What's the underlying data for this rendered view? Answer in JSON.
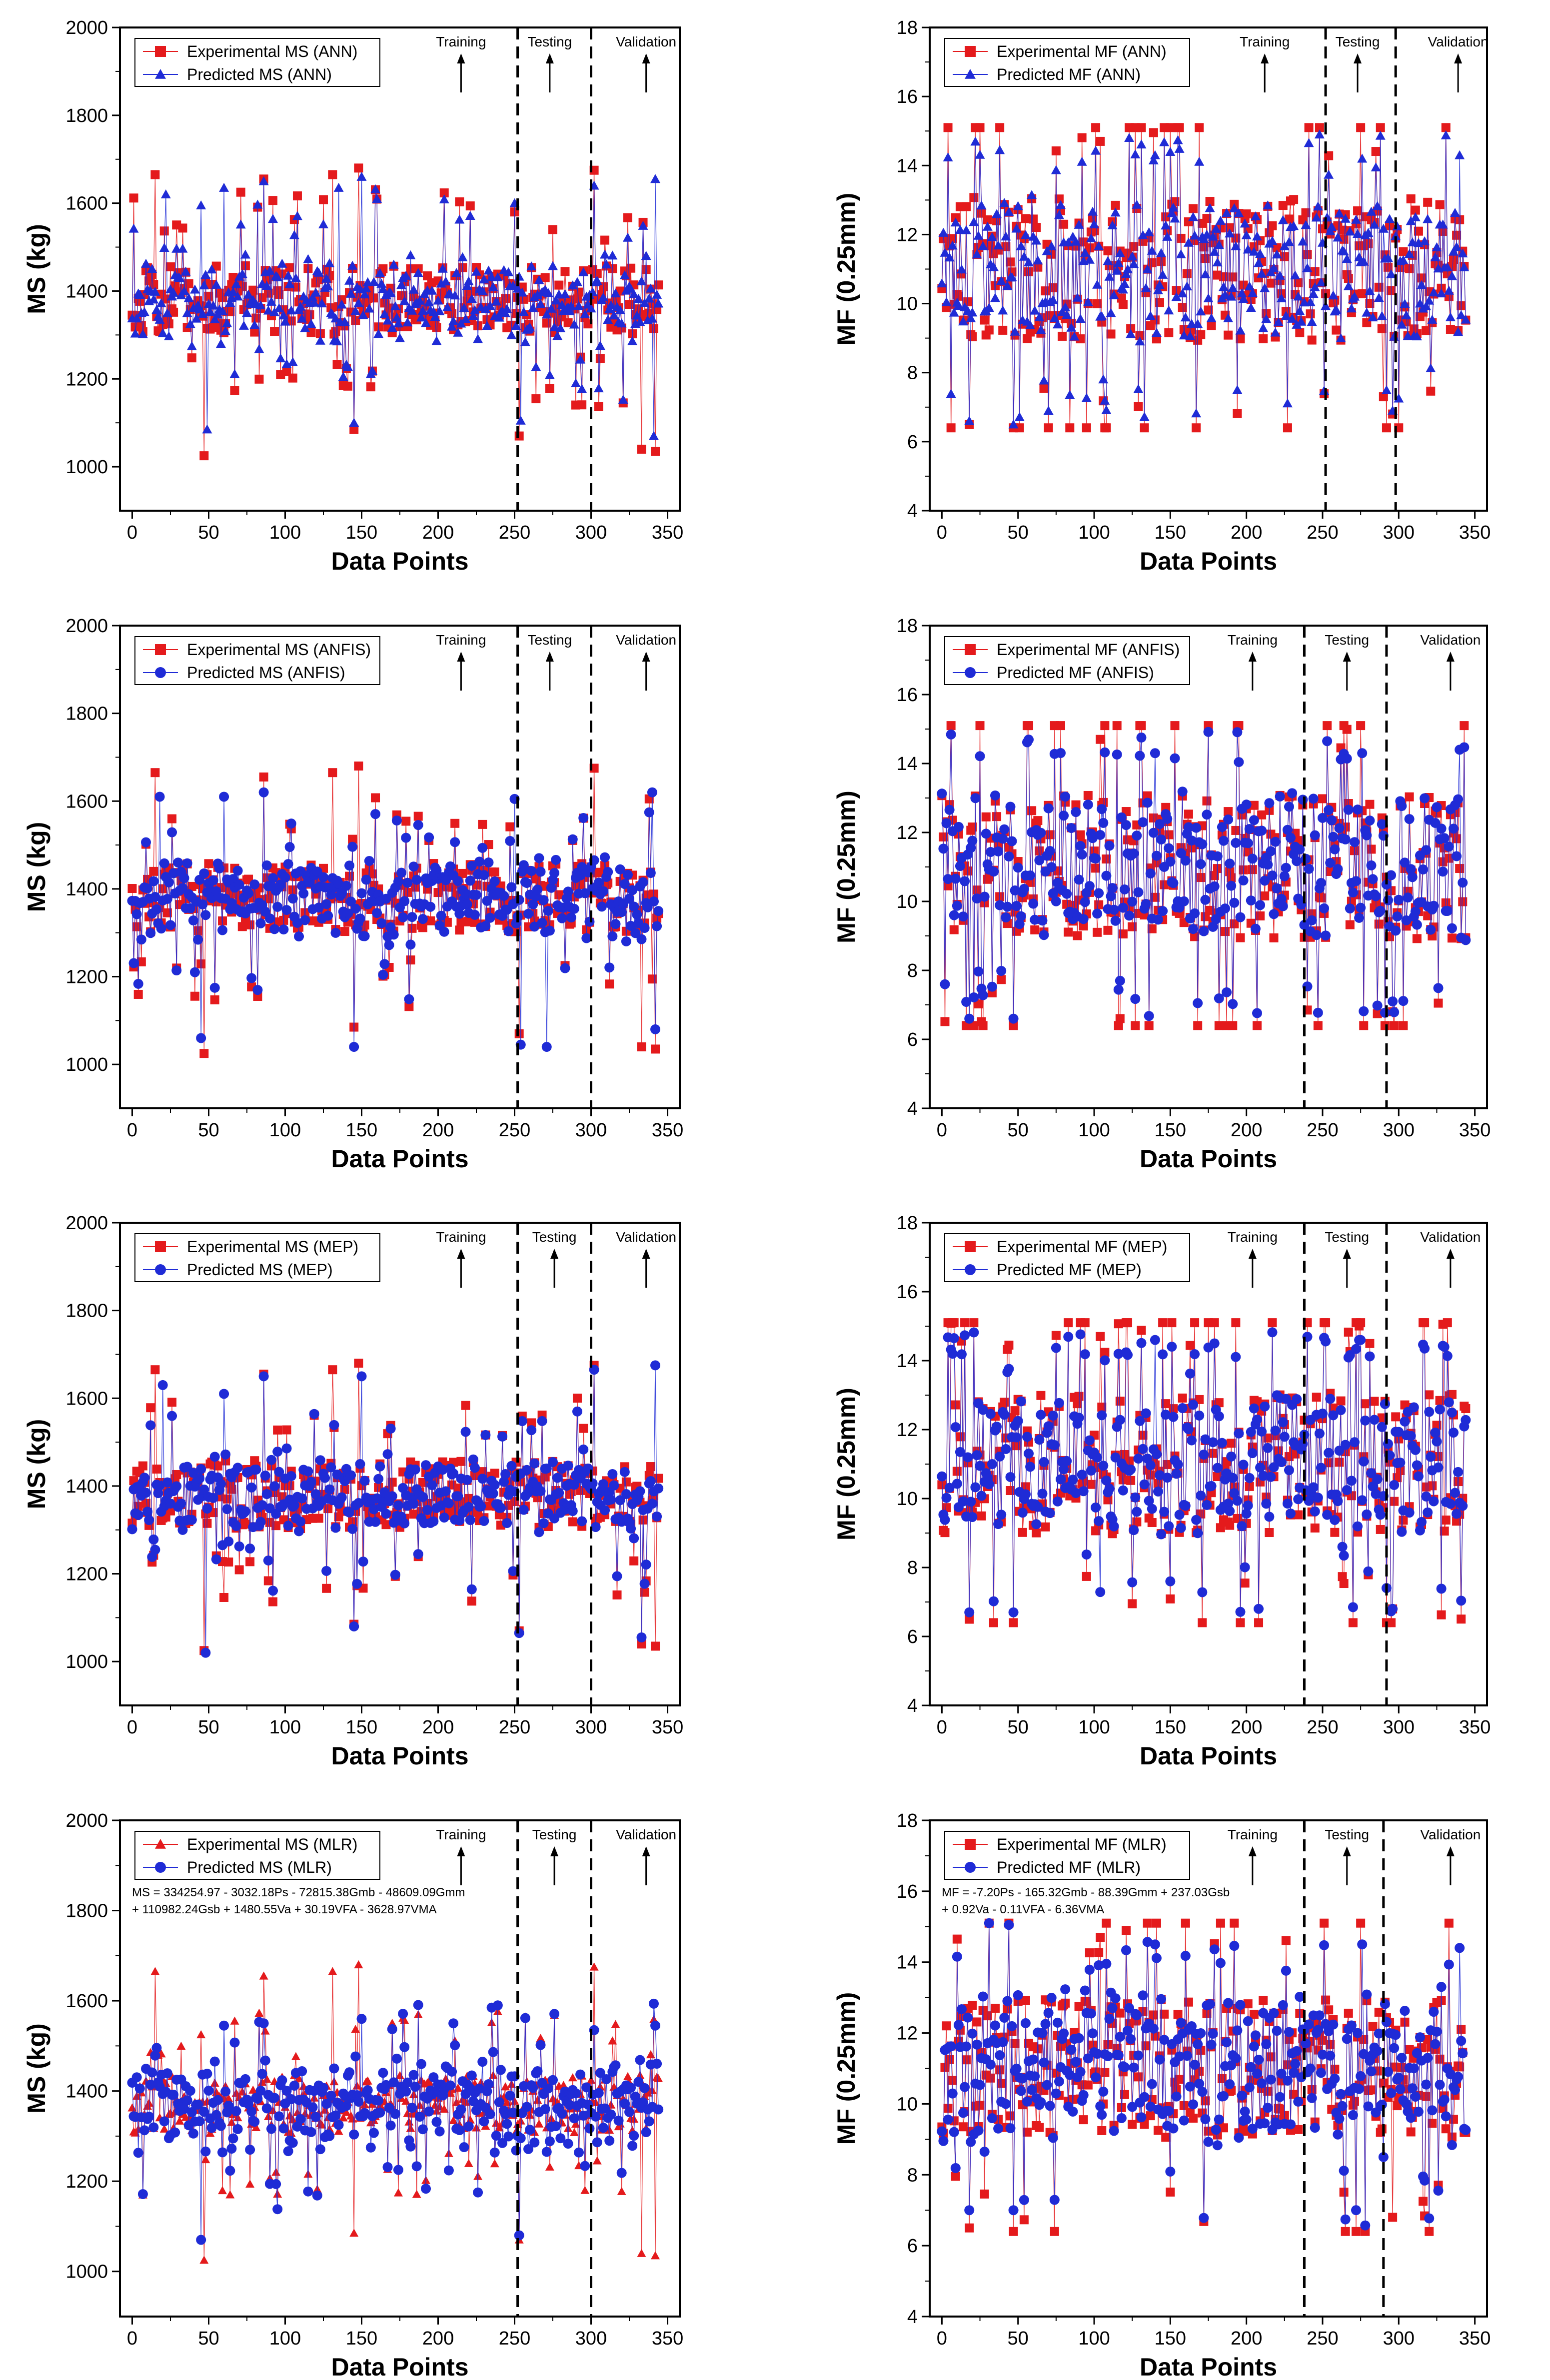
{
  "colors": {
    "experimental": "#e41a1c",
    "predicted": "#1f2bd6",
    "axis": "#000000"
  },
  "chart_data": [
    {
      "id": "ann-ms",
      "type": "scatter-line",
      "model": "ANN",
      "ylabel": "MS (kg)",
      "xlabel": "Data Points",
      "xlim": [
        -8,
        358
      ],
      "ylim": [
        900,
        2000
      ],
      "xticks": [
        0,
        50,
        100,
        150,
        200,
        250,
        300,
        350
      ],
      "yticks": [
        1000,
        1200,
        1400,
        1600,
        1800,
        2000
      ],
      "split_lines": [
        252,
        300
      ],
      "annotations": [
        {
          "text": "Training",
          "x": 215
        },
        {
          "text": "Testing",
          "x": 273
        },
        {
          "text": "Validation",
          "x": 336
        }
      ],
      "legend": {
        "position": "top-left",
        "entries": [
          {
            "label": "Experimental MS (ANN)",
            "series": "experimental",
            "marker": "square"
          },
          {
            "label": "Predicted MS (ANN)",
            "series": "predicted",
            "marker": "triangle"
          }
        ]
      },
      "equation": [],
      "series_gen": {
        "n": 345,
        "seed": 11,
        "base": 1380,
        "spread": 60,
        "range": [
          1020,
          1690
        ],
        "pred_noise": 0.35,
        "extremes_exp": [
          [
            15,
            1665
          ],
          [
            47,
            1025
          ],
          [
            86,
            1655
          ],
          [
            131,
            1665
          ],
          [
            148,
            1680
          ],
          [
            145,
            1085
          ],
          [
            253,
            1070
          ],
          [
            302,
            1675
          ],
          [
            333,
            1040
          ],
          [
            342,
            1035
          ],
          [
            275,
            1540
          ]
        ],
        "extremes_pred": [
          [
            22,
            1620
          ],
          [
            45,
            1595
          ],
          [
            49,
            1085
          ],
          [
            60,
            1635
          ],
          [
            86,
            1650
          ],
          [
            135,
            1635
          ],
          [
            145,
            1100
          ],
          [
            150,
            1660
          ],
          [
            250,
            1600
          ],
          [
            254,
            1105
          ],
          [
            302,
            1640
          ],
          [
            342,
            1655
          ],
          [
            341,
            1070
          ]
        ]
      }
    },
    {
      "id": "ann-mf",
      "type": "scatter-line",
      "model": "ANN",
      "ylabel": "MF (0.25mm)",
      "xlabel": "Data Points",
      "xlim": [
        -8,
        358
      ],
      "ylim": [
        4,
        18
      ],
      "xticks": [
        0,
        50,
        100,
        150,
        200,
        250,
        300,
        350
      ],
      "yticks": [
        4,
        6,
        8,
        10,
        12,
        14,
        16,
        18
      ],
      "split_lines": [
        252,
        298
      ],
      "annotations": [
        {
          "text": "Training",
          "x": 212
        },
        {
          "text": "Testing",
          "x": 273
        },
        {
          "text": "Validation",
          "x": 339
        }
      ],
      "legend": {
        "position": "top-left",
        "entries": [
          {
            "label": "Experimental MF (ANN)",
            "series": "experimental",
            "marker": "square"
          },
          {
            "label": "Predicted MF (ANN)",
            "series": "predicted",
            "marker": "triangle"
          }
        ]
      },
      "equation": [],
      "series_gen": {
        "n": 345,
        "seed": 23,
        "base": 11.0,
        "spread": 1.6,
        "range": [
          6.4,
          15.1
        ],
        "pred_noise": 0.3,
        "extremes_exp": [
          [
            18,
            6.5
          ],
          [
            47,
            6.4
          ],
          [
            104,
            14.7
          ],
          [
            275,
            15.1
          ],
          [
            296,
            6.8
          ],
          [
            290,
            7.3
          ]
        ],
        "extremes_pred": [
          [
            18,
            6.6
          ],
          [
            47,
            6.5
          ],
          [
            140,
            14.3
          ],
          [
            276,
            14.2
          ],
          [
            296,
            6.9
          ],
          [
            340,
            14.3
          ]
        ]
      }
    },
    {
      "id": "anfis-ms",
      "type": "scatter-line",
      "model": "ANFIS",
      "ylabel": "MS (kg)",
      "xlabel": "Data Points",
      "xlim": [
        -8,
        358
      ],
      "ylim": [
        900,
        2000
      ],
      "xticks": [
        0,
        50,
        100,
        150,
        200,
        250,
        300,
        350
      ],
      "yticks": [
        1000,
        1200,
        1400,
        1600,
        1800,
        2000
      ],
      "split_lines": [
        252,
        300
      ],
      "annotations": [
        {
          "text": "Training",
          "x": 215
        },
        {
          "text": "Testing",
          "x": 273
        },
        {
          "text": "Validation",
          "x": 336
        }
      ],
      "legend": {
        "position": "top-left",
        "entries": [
          {
            "label": "Experimental MS (ANFIS)",
            "series": "experimental",
            "marker": "square"
          },
          {
            "label": "Predicted MS (ANFIS)",
            "series": "predicted",
            "marker": "circle"
          }
        ]
      },
      "equation": [],
      "series_gen": {
        "n": 345,
        "seed": 37,
        "base": 1380,
        "spread": 60,
        "range": [
          1020,
          1690
        ],
        "pred_noise": 0.3,
        "extremes_exp": [
          [
            15,
            1665
          ],
          [
            47,
            1025
          ],
          [
            86,
            1655
          ],
          [
            131,
            1665
          ],
          [
            148,
            1680
          ],
          [
            145,
            1085
          ],
          [
            253,
            1070
          ],
          [
            302,
            1675
          ],
          [
            333,
            1040
          ],
          [
            342,
            1035
          ]
        ],
        "extremes_pred": [
          [
            18,
            1610
          ],
          [
            45,
            1060
          ],
          [
            60,
            1610
          ],
          [
            86,
            1620
          ],
          [
            145,
            1040
          ],
          [
            250,
            1605
          ],
          [
            254,
            1045
          ],
          [
            271,
            1040
          ],
          [
            340,
            1620
          ],
          [
            342,
            1080
          ]
        ]
      }
    },
    {
      "id": "anfis-mf",
      "type": "scatter-line",
      "model": "ANFIS",
      "ylabel": "MF (0.25mm)",
      "xlabel": "Data Points",
      "xlim": [
        -8,
        358
      ],
      "ylim": [
        4,
        18
      ],
      "xticks": [
        0,
        50,
        100,
        150,
        200,
        250,
        300,
        350
      ],
      "yticks": [
        4,
        6,
        8,
        10,
        12,
        14,
        16,
        18
      ],
      "split_lines": [
        238,
        292
      ],
      "annotations": [
        {
          "text": "Training",
          "x": 204
        },
        {
          "text": "Testing",
          "x": 266
        },
        {
          "text": "Validation",
          "x": 334
        }
      ],
      "legend": {
        "position": "top-left",
        "entries": [
          {
            "label": "Experimental MF (ANFIS)",
            "series": "experimental",
            "marker": "square"
          },
          {
            "label": "Predicted MF (ANFIS)",
            "series": "predicted",
            "marker": "circle"
          }
        ]
      },
      "equation": [],
      "series_gen": {
        "n": 345,
        "seed": 41,
        "base": 11.0,
        "spread": 1.6,
        "range": [
          6.4,
          15.1
        ],
        "pred_noise": 0.3,
        "extremes_exp": [
          [
            18,
            6.5
          ],
          [
            47,
            6.4
          ],
          [
            104,
            14.7
          ],
          [
            275,
            15.1
          ],
          [
            296,
            6.8
          ]
        ],
        "extremes_pred": [
          [
            18,
            6.6
          ],
          [
            47,
            6.6
          ],
          [
            140,
            14.3
          ],
          [
            276,
            14.3
          ],
          [
            296,
            7.1
          ],
          [
            340,
            14.4
          ]
        ]
      }
    },
    {
      "id": "mep-ms",
      "type": "scatter-line",
      "model": "MEP",
      "ylabel": "MS (kg)",
      "xlabel": "Data Points",
      "xlim": [
        -8,
        358
      ],
      "ylim": [
        900,
        2000
      ],
      "xticks": [
        0,
        50,
        100,
        150,
        200,
        250,
        300,
        350
      ],
      "yticks": [
        1000,
        1200,
        1400,
        1600,
        1800,
        2000
      ],
      "split_lines": [
        252,
        300
      ],
      "annotations": [
        {
          "text": "Training",
          "x": 215
        },
        {
          "text": "Testing",
          "x": 276
        },
        {
          "text": "Validation",
          "x": 336
        }
      ],
      "legend": {
        "position": "top-left",
        "entries": [
          {
            "label": "Experimental MS (MEP)",
            "series": "experimental",
            "marker": "square"
          },
          {
            "label": "Predicted MS (MEP)",
            "series": "predicted",
            "marker": "circle"
          }
        ]
      },
      "equation": [],
      "series_gen": {
        "n": 345,
        "seed": 53,
        "base": 1380,
        "spread": 60,
        "range": [
          1020,
          1690
        ],
        "pred_noise": 0.25,
        "extremes_exp": [
          [
            15,
            1665
          ],
          [
            47,
            1025
          ],
          [
            86,
            1655
          ],
          [
            131,
            1665
          ],
          [
            148,
            1680
          ],
          [
            145,
            1085
          ],
          [
            253,
            1070
          ],
          [
            302,
            1675
          ],
          [
            333,
            1040
          ],
          [
            342,
            1035
          ]
        ],
        "extremes_pred": [
          [
            20,
            1630
          ],
          [
            48,
            1020
          ],
          [
            60,
            1610
          ],
          [
            86,
            1650
          ],
          [
            145,
            1080
          ],
          [
            150,
            1650
          ],
          [
            253,
            1065
          ],
          [
            302,
            1665
          ],
          [
            333,
            1055
          ],
          [
            342,
            1675
          ]
        ]
      }
    },
    {
      "id": "mep-mf",
      "type": "scatter-line",
      "model": "MEP",
      "ylabel": "MF (0.25mm)",
      "xlabel": "Data Points",
      "xlim": [
        -8,
        358
      ],
      "ylim": [
        4,
        18
      ],
      "xticks": [
        0,
        50,
        100,
        150,
        200,
        250,
        300,
        350
      ],
      "yticks": [
        4,
        6,
        8,
        10,
        12,
        14,
        16,
        18
      ],
      "split_lines": [
        238,
        292
      ],
      "annotations": [
        {
          "text": "Training",
          "x": 204
        },
        {
          "text": "Testing",
          "x": 266
        },
        {
          "text": "Validation",
          "x": 334
        }
      ],
      "legend": {
        "position": "top-left",
        "entries": [
          {
            "label": "Experimental MF (MEP)",
            "series": "experimental",
            "marker": "square"
          },
          {
            "label": "Predicted MF (MEP)",
            "series": "predicted",
            "marker": "circle"
          }
        ]
      },
      "equation": [],
      "series_gen": {
        "n": 345,
        "seed": 67,
        "base": 11.0,
        "spread": 1.6,
        "range": [
          6.4,
          15.1
        ],
        "pred_noise": 0.25,
        "extremes_exp": [
          [
            18,
            6.5
          ],
          [
            47,
            6.4
          ],
          [
            104,
            14.7
          ],
          [
            275,
            15.1
          ],
          [
            296,
            6.8
          ]
        ],
        "extremes_pred": [
          [
            18,
            6.7
          ],
          [
            47,
            6.7
          ],
          [
            140,
            14.6
          ],
          [
            275,
            14.6
          ],
          [
            296,
            6.8
          ],
          [
            330,
            14.4
          ]
        ]
      }
    },
    {
      "id": "mlr-ms",
      "type": "scatter-line",
      "model": "MLR",
      "ylabel": "MS (kg)",
      "xlabel": "Data Points",
      "xlim": [
        -8,
        358
      ],
      "ylim": [
        900,
        2000
      ],
      "xticks": [
        0,
        50,
        100,
        150,
        200,
        250,
        300,
        350
      ],
      "yticks": [
        1000,
        1200,
        1400,
        1600,
        1800,
        2000
      ],
      "split_lines": [
        252,
        300
      ],
      "annotations": [
        {
          "text": "Training",
          "x": 215
        },
        {
          "text": "Testing",
          "x": 276
        },
        {
          "text": "Validation",
          "x": 336
        }
      ],
      "legend": {
        "position": "top-left",
        "entries": [
          {
            "label": "Experimental MS (MLR)",
            "series": "experimental",
            "marker": "triangle"
          },
          {
            "label": "Predicted MS (MLR)",
            "series": "predicted",
            "marker": "circle"
          }
        ]
      },
      "equation": [
        "MS = 334254.97 - 3032.18Ps - 72815.38Gmb - 48609.09Gmm",
        "+ 110982.24Gsb + 1480.55Va + 30.19VFA - 3628.97VMA"
      ],
      "series_gen": {
        "n": 345,
        "seed": 79,
        "base": 1370,
        "spread": 50,
        "range": [
          1020,
          1690
        ],
        "pred_noise": 0.55,
        "extremes_exp": [
          [
            15,
            1665
          ],
          [
            47,
            1025
          ],
          [
            86,
            1655
          ],
          [
            131,
            1665
          ],
          [
            148,
            1680
          ],
          [
            145,
            1085
          ],
          [
            253,
            1070
          ],
          [
            302,
            1675
          ],
          [
            333,
            1040
          ],
          [
            342,
            1035
          ]
        ],
        "extremes_pred": [
          [
            45,
            1070
          ],
          [
            60,
            1545
          ],
          [
            86,
            1550
          ],
          [
            150,
            1560
          ],
          [
            210,
            1550
          ],
          [
            253,
            1080
          ],
          [
            302,
            1535
          ],
          [
            342,
            1545
          ]
        ]
      }
    },
    {
      "id": "mlr-mf",
      "type": "scatter-line",
      "model": "MLR",
      "ylabel": "MF (0.25mm)",
      "xlabel": "Data Points",
      "xlim": [
        -8,
        358
      ],
      "ylim": [
        4,
        18
      ],
      "xticks": [
        0,
        50,
        100,
        150,
        200,
        250,
        300,
        350
      ],
      "yticks": [
        4,
        6,
        8,
        10,
        12,
        14,
        16,
        18
      ],
      "split_lines": [
        238,
        290
      ],
      "annotations": [
        {
          "text": "Training",
          "x": 204
        },
        {
          "text": "Testing",
          "x": 266
        },
        {
          "text": "Validation",
          "x": 334
        }
      ],
      "legend": {
        "position": "top-left",
        "entries": [
          {
            "label": "Experimental MF (MLR)",
            "series": "experimental",
            "marker": "square"
          },
          {
            "label": "Predicted MF (MLR)",
            "series": "predicted",
            "marker": "circle"
          }
        ]
      },
      "equation": [
        "MF = -7.20Ps - 165.32Gmb - 88.39Gmm + 237.03Gsb",
        "+ 0.92Va - 0.11VFA - 6.36VMA"
      ],
      "series_gen": {
        "n": 345,
        "seed": 97,
        "base": 11.0,
        "spread": 1.5,
        "range": [
          6.4,
          15.1
        ],
        "pred_noise": 0.45,
        "extremes_exp": [
          [
            18,
            6.5
          ],
          [
            47,
            6.4
          ],
          [
            104,
            14.7
          ],
          [
            275,
            15.1
          ],
          [
            296,
            6.8
          ]
        ],
        "extremes_pred": [
          [
            18,
            7.0
          ],
          [
            47,
            7.0
          ],
          [
            140,
            14.5
          ],
          [
            276,
            14.5
          ],
          [
            290,
            8.5
          ],
          [
            340,
            14.4
          ]
        ]
      }
    }
  ]
}
